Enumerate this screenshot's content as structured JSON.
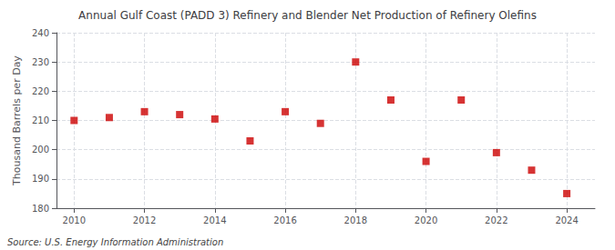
{
  "chart_data": {
    "type": "scatter",
    "title": "Annual Gulf Coast (PADD 3) Refinery and Blender Net Production of Refinery Olefins",
    "ylabel": "Thousand Barrels per Day",
    "source": "Source: U.S. Energy Information Administration",
    "x": [
      2010,
      2011,
      2012,
      2013,
      2014,
      2015,
      2016,
      2017,
      2018,
      2019,
      2020,
      2021,
      2022,
      2023,
      2024
    ],
    "values": [
      210.0,
      211.0,
      213.0,
      212.0,
      210.5,
      203.0,
      213.0,
      209.0,
      230.0,
      217.0,
      196.0,
      217.0,
      199.0,
      193.0,
      185.0
    ],
    "xlim": [
      2009.5,
      2024.8
    ],
    "xticks": [
      2010,
      2012,
      2014,
      2016,
      2018,
      2020,
      2022,
      2024
    ],
    "ylim": [
      180,
      240
    ],
    "yticks": [
      180,
      190,
      200,
      210,
      220,
      230,
      240
    ],
    "color": "#cc0000",
    "marker": "square",
    "grid": true
  }
}
